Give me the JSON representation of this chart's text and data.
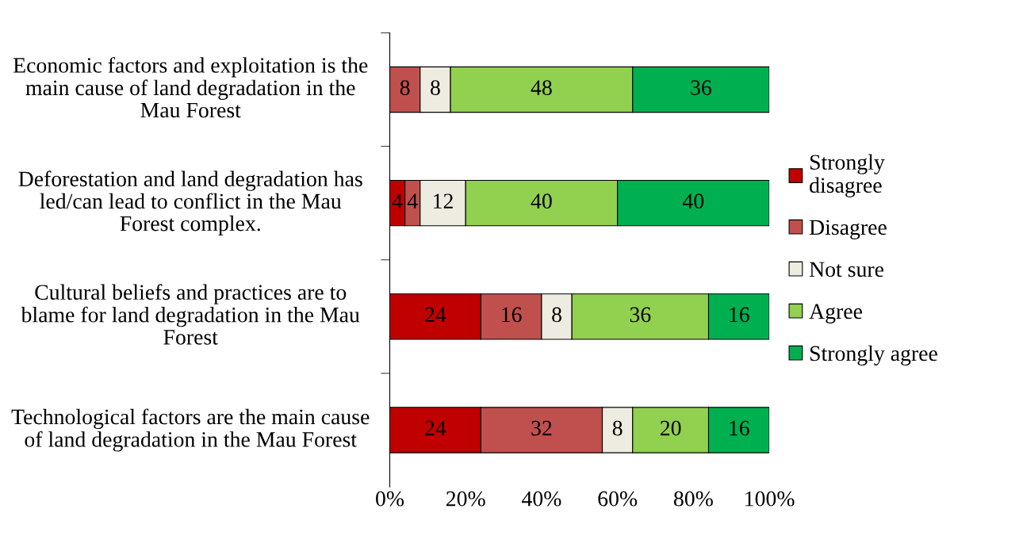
{
  "chart_data": {
    "type": "bar",
    "orientation": "horizontal",
    "stacked": true,
    "categories": [
      "Economic factors and exploitation is the main cause of land degradation in the Mau Forest",
      "Deforestation and land degradation has led/can lead to conflict in the Mau Forest complex.",
      "Cultural beliefs and practices are to blame for land degradation in the Mau Forest",
      "Technological factors are the main cause of land degradation in the Mau Forest"
    ],
    "series": [
      {
        "name": "Strongly disagree",
        "color": "#c00000",
        "values": [
          0,
          4,
          24,
          24
        ],
        "value_labels": [
          null,
          "4",
          "24",
          "24"
        ]
      },
      {
        "name": "Disagree",
        "color": "#c0504d",
        "values": [
          8,
          4,
          16,
          32
        ],
        "value_labels": [
          "8",
          "4",
          "16",
          "32"
        ]
      },
      {
        "name": "Not sure",
        "color": "#eeece1",
        "values": [
          8,
          12,
          8,
          8
        ],
        "value_labels": [
          "8",
          "12",
          "8",
          "8"
        ]
      },
      {
        "name": "Agree",
        "color": "#92d050",
        "values": [
          48,
          40,
          36,
          20
        ],
        "value_labels": [
          "48",
          "40",
          "36",
          "20"
        ]
      },
      {
        "name": "Strongly agree",
        "color": "#00b050",
        "values": [
          36,
          40,
          16,
          16
        ],
        "value_labels": [
          "36",
          "40",
          "16",
          "16"
        ]
      }
    ],
    "xlim": [
      0,
      100
    ],
    "xticks": [
      {
        "value": 0,
        "label": "0%"
      },
      {
        "value": 20,
        "label": "20%"
      },
      {
        "value": 40,
        "label": "40%"
      },
      {
        "value": 60,
        "label": "60%"
      },
      {
        "value": 80,
        "label": "80%"
      },
      {
        "value": 100,
        "label": "100%"
      }
    ],
    "legend": "right",
    "grid": false
  }
}
